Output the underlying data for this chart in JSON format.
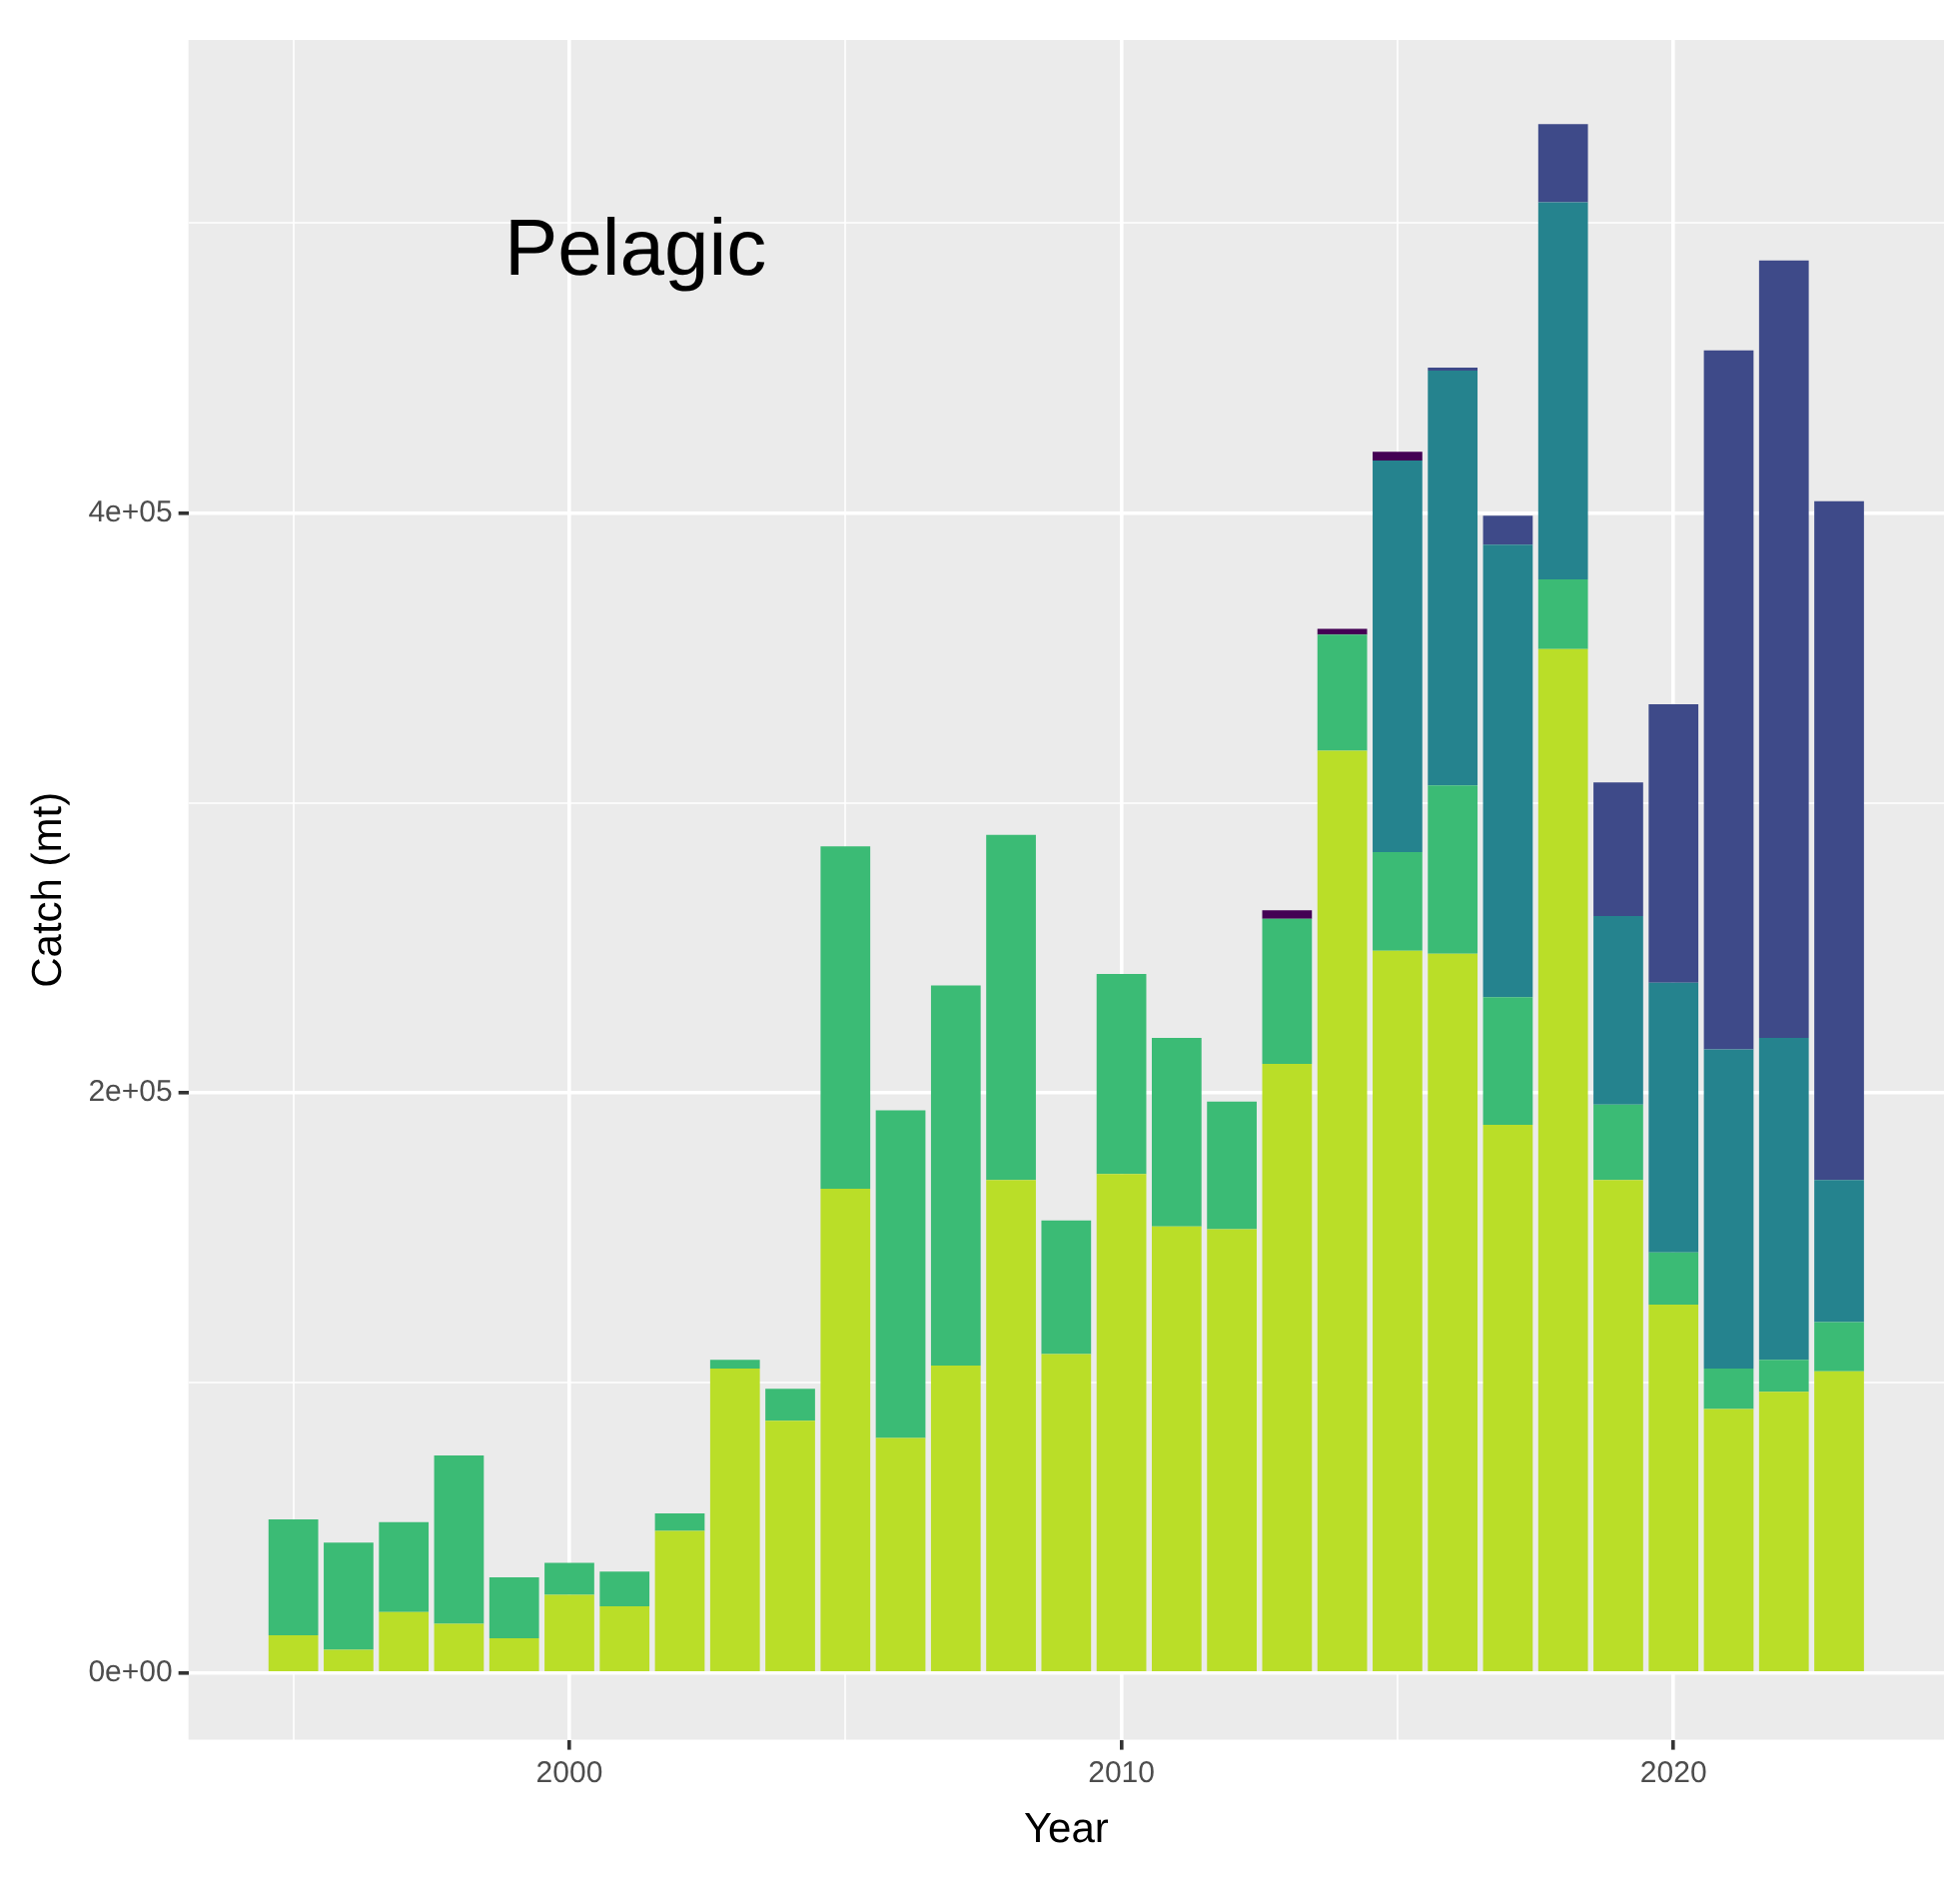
{
  "chart_data": {
    "type": "bar",
    "stacked": true,
    "xlabel": "Year",
    "ylabel": "Catch (mt)",
    "annotations": [
      "Pelagic"
    ],
    "x": [
      1995,
      1996,
      1997,
      1998,
      1999,
      2000,
      2001,
      2002,
      2003,
      2004,
      2005,
      2006,
      2007,
      2008,
      2009,
      2010,
      2011,
      2012,
      2013,
      2014,
      2015,
      2016,
      2017,
      2018,
      2019,
      2020,
      2021,
      2022,
      2023
    ],
    "series": [
      {
        "color": "#bade28",
        "values": [
          13000,
          8000,
          21000,
          17000,
          12000,
          27000,
          23000,
          49000,
          105000,
          87000,
          167000,
          81000,
          106000,
          170000,
          110000,
          172000,
          154000,
          153000,
          210000,
          318000,
          249000,
          248000,
          189000,
          353000,
          170000,
          127000,
          91000,
          97000,
          104000
        ]
      },
      {
        "color": "#3bbb75",
        "values": [
          40000,
          37000,
          31000,
          58000,
          21000,
          11000,
          12000,
          6000,
          3000,
          11000,
          118000,
          113000,
          131000,
          119000,
          46000,
          69000,
          65000,
          44000,
          50000,
          40000,
          34000,
          58000,
          44000,
          24000,
          26000,
          18000,
          14000,
          11000,
          17000
        ]
      },
      {
        "color": "#25838e",
        "values": [
          null,
          null,
          null,
          null,
          null,
          null,
          null,
          null,
          null,
          null,
          null,
          null,
          null,
          null,
          null,
          null,
          null,
          null,
          null,
          null,
          135000,
          143000,
          156000,
          130000,
          65000,
          93000,
          110000,
          111000,
          49000
        ]
      },
      {
        "color": "#3e4a89",
        "values": [
          null,
          null,
          null,
          null,
          null,
          null,
          null,
          null,
          null,
          null,
          null,
          null,
          null,
          null,
          null,
          null,
          null,
          null,
          null,
          null,
          null,
          1000,
          10000,
          27000,
          46000,
          96000,
          241000,
          268000,
          234000
        ]
      },
      {
        "color": "#440154",
        "values": [
          null,
          null,
          null,
          null,
          null,
          null,
          null,
          null,
          null,
          null,
          null,
          null,
          null,
          null,
          null,
          null,
          null,
          null,
          3000,
          2000,
          3000,
          null,
          null,
          null,
          null,
          null,
          null,
          null,
          null
        ]
      }
    ],
    "xlim": [
      1993.1,
      2024.9
    ],
    "xticks": [
      {
        "value": 1995,
        "label": null
      },
      2000,
      {
        "value": 2005,
        "label": null
      },
      2010,
      {
        "value": 2015,
        "label": null
      },
      2020
    ],
    "ylim": [
      -23000,
      563000
    ],
    "yticks": [
      {
        "value": 0,
        "label": "0e+00"
      },
      {
        "value": 100000,
        "label": null
      },
      {
        "value": 200000,
        "label": "2e+05"
      },
      {
        "value": 300000,
        "label": null
      },
      {
        "value": 400000,
        "label": "4e+05"
      },
      {
        "value": 500000,
        "label": null
      }
    ],
    "grid": true,
    "legend": false
  }
}
